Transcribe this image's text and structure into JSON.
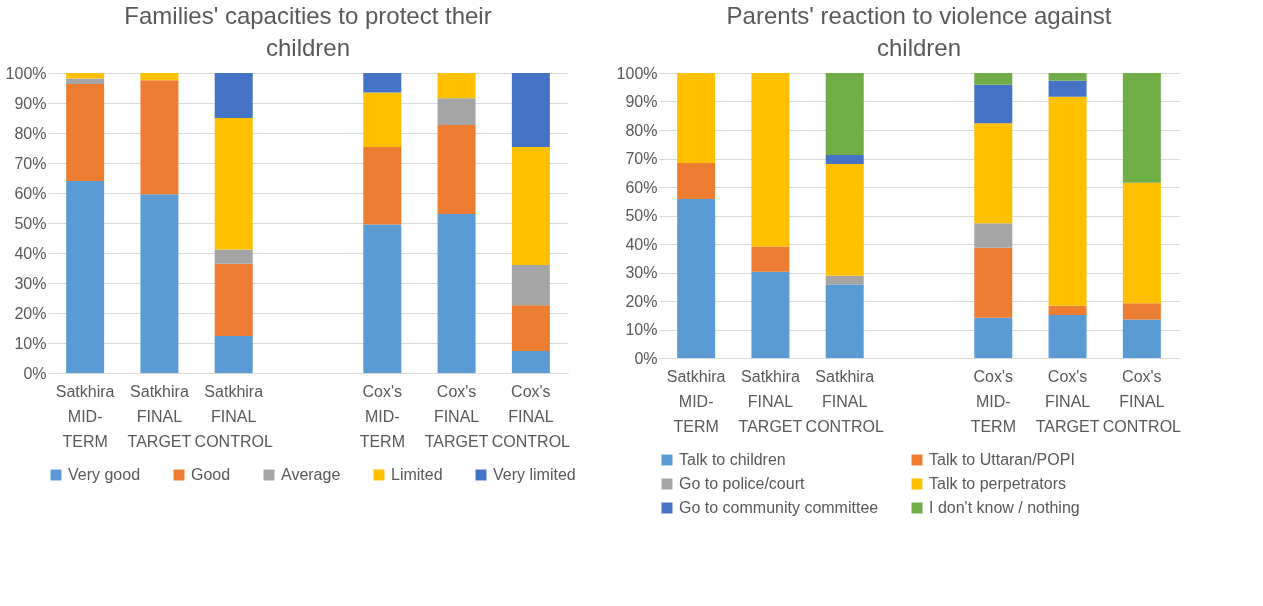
{
  "chart_data": [
    {
      "type": "bar",
      "title": "Families' capacities to protect their children",
      "stacked": true,
      "categories": [
        "Satkhira MID-TERM",
        "Satkhira FINAL TARGET",
        "Satkhira FINAL CONTROL",
        null,
        "Cox's MID-TERM",
        "Cox's FINAL TARGET",
        "Cox's FINAL CONTROL"
      ],
      "series": [
        {
          "name": "Very good",
          "color": "#5b9bd5",
          "values": [
            64,
            59.6,
            12.3,
            null,
            49.5,
            53,
            7.3
          ]
        },
        {
          "name": "Good",
          "color": "#ed7d31",
          "values": [
            32.3,
            38,
            24.1,
            null,
            25.8,
            29.7,
            15.3
          ]
        },
        {
          "name": "Average",
          "color": "#a5a5a5",
          "values": [
            1.9,
            0,
            4.8,
            null,
            0,
            8.9,
            13.4
          ]
        },
        {
          "name": "Limited",
          "color": "#ffc000",
          "values": [
            1.8,
            2.4,
            43.8,
            null,
            18.2,
            8.4,
            39.3
          ]
        },
        {
          "name": "Very limited",
          "color": "#4472c4",
          "values": [
            0,
            0,
            15,
            null,
            6.5,
            0,
            24.7
          ]
        }
      ],
      "ylim": [
        0,
        100
      ],
      "yticks": [
        {
          "value": 0,
          "label": "0%"
        },
        {
          "value": 10,
          "label": "10%"
        },
        {
          "value": 20,
          "label": "20%"
        },
        {
          "value": 30,
          "label": "30%"
        },
        {
          "value": 40,
          "label": "40%"
        },
        {
          "value": 50,
          "label": "50%"
        },
        {
          "value": 60,
          "label": "60%"
        },
        {
          "value": 70,
          "label": "70%"
        },
        {
          "value": 80,
          "label": "80%"
        },
        {
          "value": 90,
          "label": "90%"
        },
        {
          "value": 100,
          "label": "100%"
        }
      ],
      "grid": "y",
      "legend": "bottom"
    },
    {
      "type": "bar",
      "title": "Parents' reaction to violence against children",
      "stacked": true,
      "categories": [
        "Satkhira MID-TERM",
        "Satkhira FINAL TARGET",
        "Satkhira FINAL CONTROL",
        null,
        "Cox's MID-TERM",
        "Cox's FINAL TARGET",
        "Cox's FINAL CONTROL"
      ],
      "series": [
        {
          "name": "Talk to children",
          "color": "#5b9bd5",
          "values": [
            55.8,
            30.3,
            25.7,
            null,
            14.1,
            15.1,
            13.5
          ]
        },
        {
          "name": "Talk to Uttaran/POPI",
          "color": "#ed7d31",
          "values": [
            12.6,
            8.8,
            0,
            null,
            24.6,
            3.2,
            5.7
          ]
        },
        {
          "name": "Go to police/court",
          "color": "#a5a5a5",
          "values": [
            0,
            0,
            3.2,
            null,
            8.6,
            0,
            0
          ]
        },
        {
          "name": "Talk to perpetrators",
          "color": "#ffc000",
          "values": [
            31.6,
            60.9,
            39.2,
            null,
            35.1,
            73.4,
            42.3
          ]
        },
        {
          "name": "Go to community committee",
          "color": "#4472c4",
          "values": [
            0,
            0,
            3.1,
            null,
            13.5,
            5.6,
            0
          ]
        },
        {
          "name": "I don't know / nothing",
          "color": "#70ad47",
          "values": [
            0,
            0,
            28.8,
            null,
            4.1,
            2.7,
            38.5
          ]
        }
      ],
      "ylim": [
        0,
        100
      ],
      "yticks": [
        {
          "value": 0,
          "label": "0%"
        },
        {
          "value": 10,
          "label": "10%"
        },
        {
          "value": 20,
          "label": "20%"
        },
        {
          "value": 30,
          "label": "30%"
        },
        {
          "value": 40,
          "label": "40%"
        },
        {
          "value": 50,
          "label": "50%"
        },
        {
          "value": 60,
          "label": "60%"
        },
        {
          "value": 70,
          "label": "70%"
        },
        {
          "value": 80,
          "label": "80%"
        },
        {
          "value": 90,
          "label": "90%"
        },
        {
          "value": 100,
          "label": "100%"
        }
      ],
      "grid": "y",
      "legend": "bottom"
    }
  ]
}
